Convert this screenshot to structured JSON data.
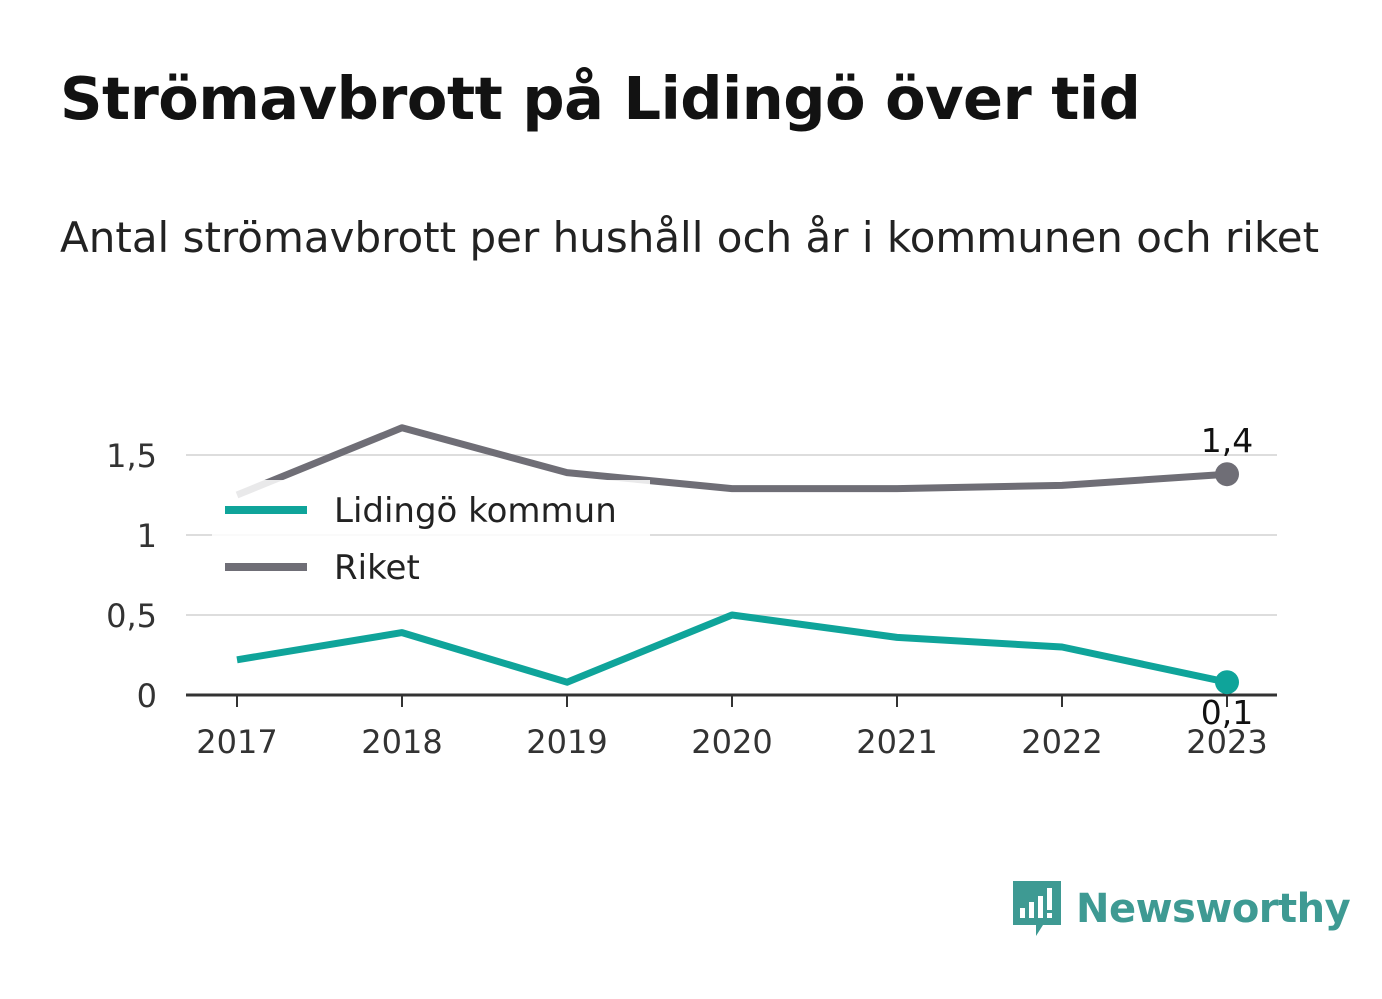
{
  "header": {
    "title": "Strömavbrott på Lidingö över tid",
    "subtitle": "Antal strömavbrott per hushåll och år i kommunen och riket"
  },
  "brand": {
    "name": "Newsworthy",
    "icon": "bar-chart-speech-bubble-icon",
    "color": "#3e9a93"
  },
  "chart_data": {
    "type": "line",
    "x": [
      "2017",
      "2018",
      "2019",
      "2020",
      "2021",
      "2022",
      "2023"
    ],
    "ylim": [
      0,
      1.5
    ],
    "yticks": [
      {
        "value": 0,
        "label": "0"
      },
      {
        "value": 0.5,
        "label": "0,5"
      },
      {
        "value": 1,
        "label": "1"
      },
      {
        "value": 1.5,
        "label": "1,5"
      }
    ],
    "grid": true,
    "legend_position": "top-left",
    "series": [
      {
        "name": "Lidingö kommun",
        "color": "#0fa49a",
        "values": [
          0.22,
          0.39,
          0.08,
          0.5,
          0.36,
          0.3,
          0.08
        ],
        "end_label": "0,1"
      },
      {
        "name": "Riket",
        "color": "#6f6e76",
        "values": [
          1.25,
          1.67,
          1.39,
          1.29,
          1.29,
          1.31,
          1.38
        ],
        "end_label": "1,4"
      }
    ]
  }
}
